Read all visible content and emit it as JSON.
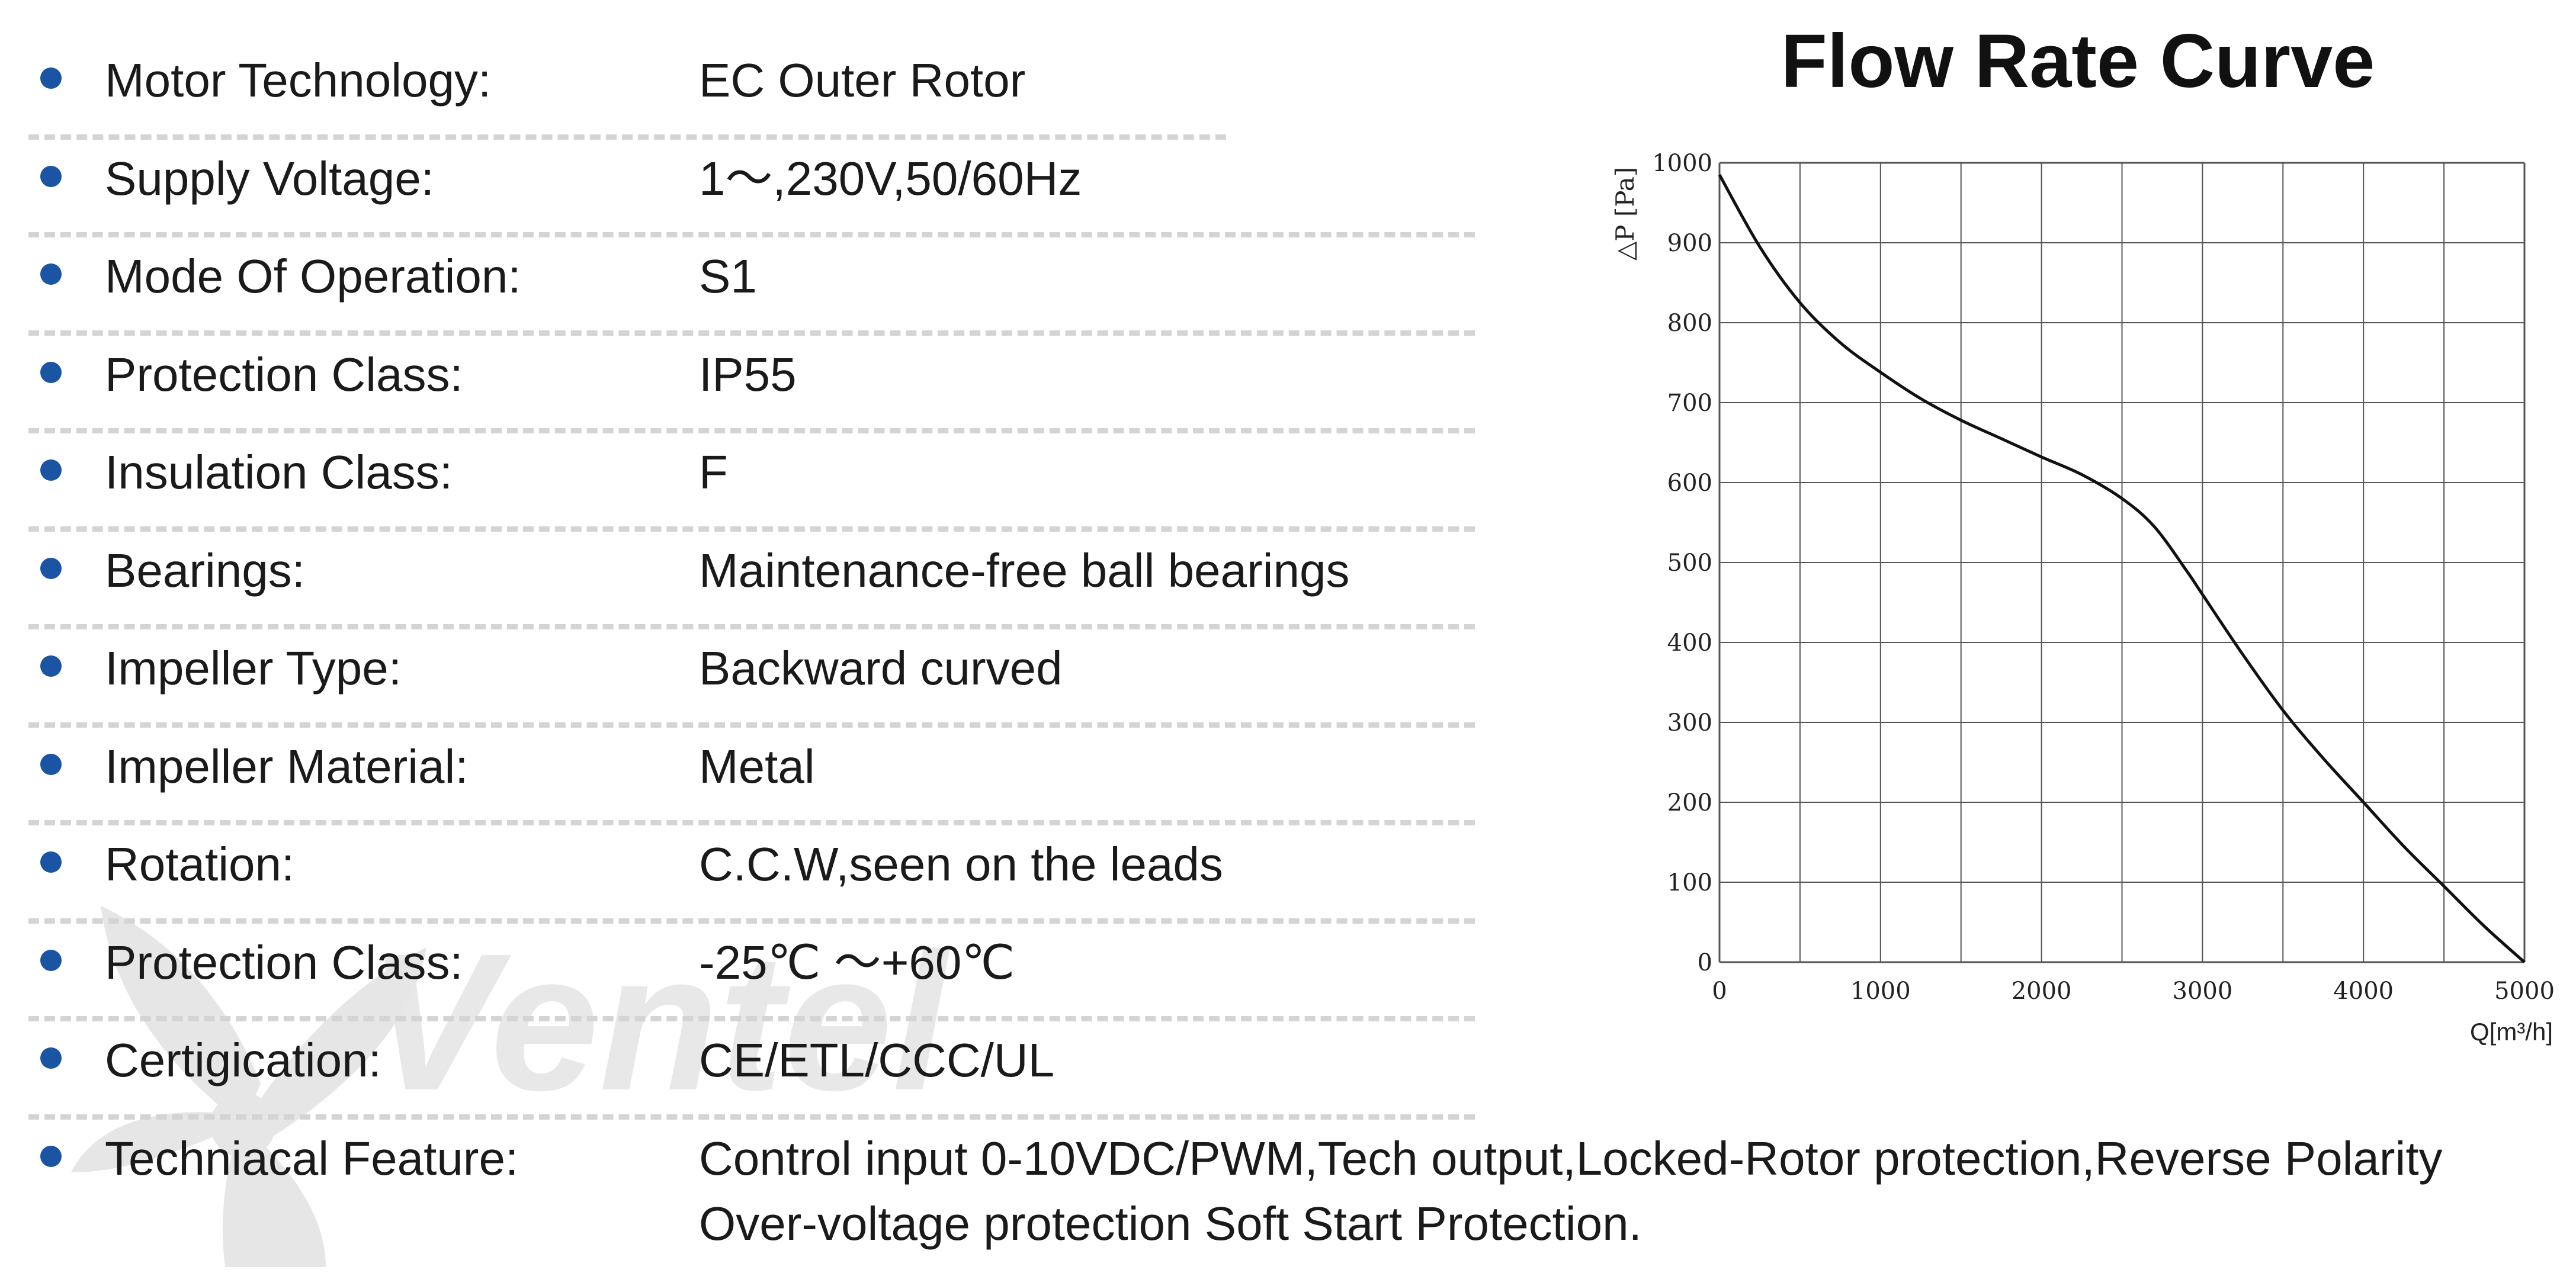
{
  "watermark": {
    "text": "Ventel",
    "icon": "fan-blade-icon"
  },
  "specs": [
    {
      "label": "Motor Technology:",
      "value": "EC Outer Rotor"
    },
    {
      "label": "Supply Voltage:",
      "value": "1～,230V,50/60Hz"
    },
    {
      "label": "Mode Of Operation:",
      "value": "S1"
    },
    {
      "label": "Protection Class:",
      "value": "IP55"
    },
    {
      "label": "Insulation Class:",
      "value": "F"
    },
    {
      "label": "Bearings:",
      "value": "Maintenance-free ball bearings"
    },
    {
      "label": "Impeller Type:",
      "value": "Backward curved"
    },
    {
      "label": "Impeller Material:",
      "value": "Metal"
    },
    {
      "label": "Rotation:",
      "value": "C.C.W,seen on the leads"
    },
    {
      "label": "Protection Class:",
      "value": "-25℃ ～+60℃"
    },
    {
      "label": "Certigication:",
      "value": "CE/ETL/CCC/UL"
    },
    {
      "label": "Techniacal Feature:",
      "value": "Control input 0-10VDC/PWM,Tech output,Locked-Rotor protection,Reverse Polarity",
      "value2": "Over-voltage protection Soft Start Protection."
    }
  ],
  "colors": {
    "bullet": "#1c54a4",
    "grid": "#555555",
    "curve": "#111111",
    "watermark": "#e6e6e6",
    "watermark_accent": "#d9eaf7"
  },
  "chart_data": {
    "type": "line",
    "title": "Flow Rate Curve",
    "xlabel": "Q[m³/h]",
    "ylabel": "△P [Pa]",
    "xlim": [
      0,
      5000
    ],
    "ylim": [
      0,
      1000
    ],
    "xticks": [
      0,
      1000,
      2000,
      3000,
      4000,
      5000
    ],
    "yticks": [
      0,
      100,
      200,
      300,
      400,
      500,
      600,
      700,
      800,
      900,
      1000
    ],
    "grid": true,
    "x_grid_step": 500,
    "series": [
      {
        "x": [
          0,
          250,
          500,
          750,
          1000,
          1250,
          1500,
          1750,
          2000,
          2250,
          2500,
          2700,
          2900,
          3000,
          3250,
          3500,
          3750,
          4000,
          4250,
          4500,
          4750,
          5000
        ],
        "y": [
          985,
          895,
          825,
          775,
          738,
          705,
          678,
          655,
          632,
          610,
          580,
          545,
          490,
          460,
          385,
          315,
          255,
          200,
          145,
          95,
          45,
          0
        ]
      }
    ]
  }
}
